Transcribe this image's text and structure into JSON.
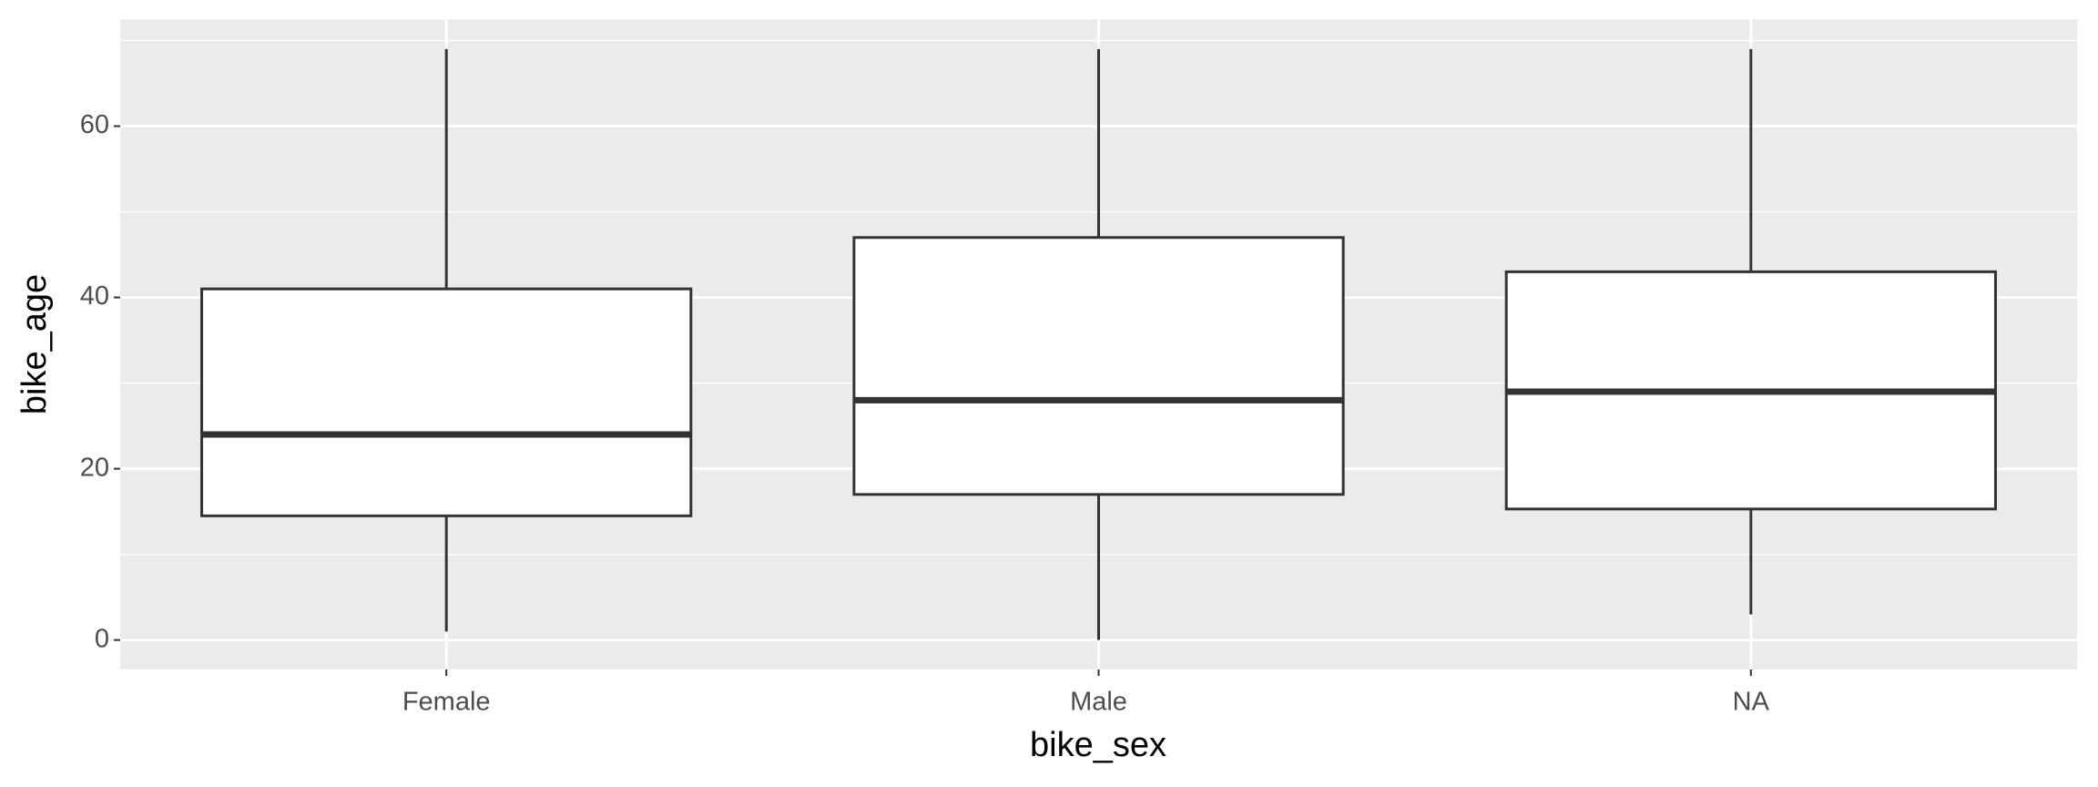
{
  "chart_data": {
    "type": "boxplot",
    "x_label": "bike_sex",
    "y_label": "bike_age",
    "categories": [
      "Female",
      "Male",
      "NA"
    ],
    "boxes": [
      {
        "whisker_low": 1,
        "q1": 14.5,
        "median": 24,
        "q3": 41,
        "whisker_high": 69
      },
      {
        "whisker_low": 0,
        "q1": 17,
        "median": 28,
        "q3": 47,
        "whisker_high": 69
      },
      {
        "whisker_low": 3,
        "q1": 15.3,
        "median": 29,
        "q3": 43,
        "whisker_high": 69
      }
    ],
    "ylim": [
      -3.44,
      72.5
    ],
    "yticks": [
      0,
      20,
      40,
      60
    ],
    "grid": true,
    "color": "#333333",
    "fill": "#ffffff",
    "panel_color": "#ebebeb"
  }
}
